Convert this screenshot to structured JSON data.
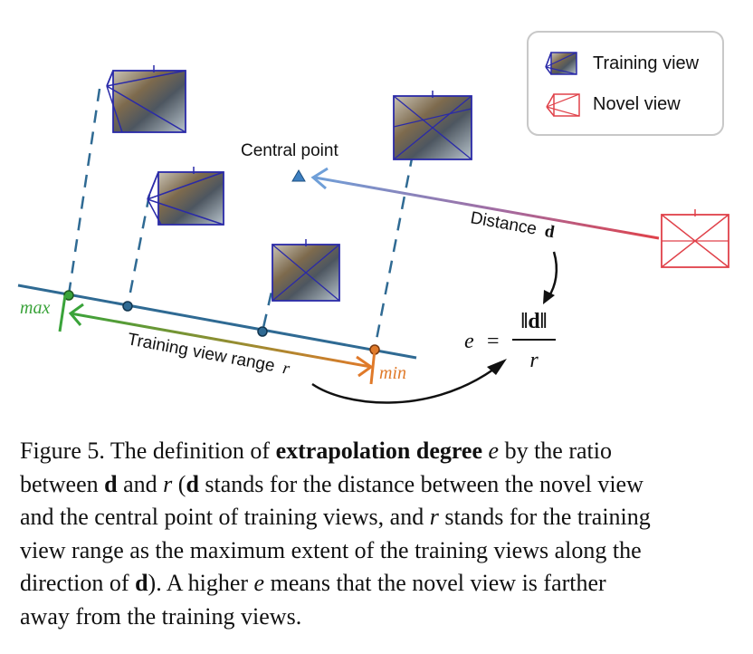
{
  "legend": {
    "training_label": "Training view",
    "novel_label": "Novel view"
  },
  "diagram": {
    "central_point_label": "Central point",
    "distance_label": "Distance",
    "distance_symbol": "d",
    "range_label": "Training view range",
    "range_symbol": "r",
    "max_label": "max",
    "min_label": "min",
    "formula": {
      "lhs": "e",
      "eq": "=",
      "numerator": "‖d‖",
      "denominator": "r"
    }
  },
  "caption": {
    "lines": [
      [
        "Figure 5.  The definition of ",
        {
          "b": "extrapolation degree"
        },
        " ",
        {
          "i": "e"
        },
        " by the ratio"
      ],
      [
        "between ",
        {
          "b": "d"
        },
        " and ",
        {
          "i": "r"
        },
        " (",
        {
          "b": "d"
        },
        " stands for the distance between the novel view"
      ],
      [
        "and the central point of training views, and ",
        {
          "i": "r"
        },
        " stands for the training"
      ],
      [
        "view range as the maximum extent of the training views along the"
      ],
      [
        "direction of ",
        {
          "b": "d"
        },
        ").  A higher ",
        {
          "i": "e"
        },
        " means that the novel view is farther"
      ],
      [
        "away from the training views."
      ]
    ]
  },
  "colors": {
    "training_frustum": "#2a2aa8",
    "novel_frustum": "#e0424a",
    "axis_line": "#2f6a93",
    "max_green": "#3aa33a",
    "min_orange": "#e07a2a",
    "central_point": "#3d7fc0"
  }
}
